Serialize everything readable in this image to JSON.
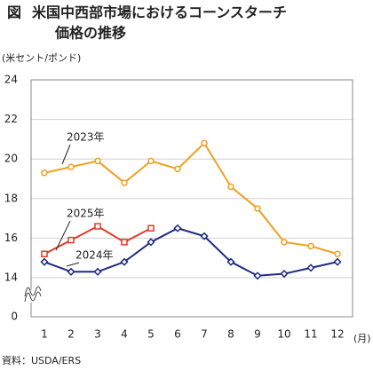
{
  "chart_data": {
    "type": "line",
    "figure_label": "図",
    "title_lines": [
      "米国中西部市場におけるコーンスターチ",
      "価格の推移"
    ],
    "y_unit": "(米セント/ポンド)",
    "x_unit": "(月)",
    "source": "資料：USDA/ERS",
    "categories": [
      "1",
      "2",
      "3",
      "4",
      "5",
      "6",
      "7",
      "8",
      "9",
      "10",
      "11",
      "12"
    ],
    "ylim": [
      0,
      24
    ],
    "axis_break": [
      0,
      14
    ],
    "yticks": [
      0,
      14,
      16,
      18,
      20,
      22,
      24
    ],
    "grid": true,
    "series": [
      {
        "name": "2023年",
        "color": "#f0a020",
        "marker": "circle",
        "values": [
          19.3,
          19.6,
          19.9,
          18.8,
          19.9,
          19.5,
          20.8,
          18.6,
          17.5,
          15.8,
          15.6,
          15.2
        ]
      },
      {
        "name": "2025年",
        "color": "#e03a2a",
        "marker": "square",
        "values": [
          15.2,
          15.9,
          16.6,
          15.8,
          16.5,
          null,
          null,
          null,
          null,
          null,
          null,
          null
        ]
      },
      {
        "name": "2024年",
        "color": "#1f2a80",
        "marker": "diamond",
        "values": [
          14.8,
          14.3,
          14.3,
          14.8,
          15.8,
          16.5,
          16.1,
          14.8,
          14.1,
          14.2,
          14.5,
          14.8
        ]
      }
    ]
  }
}
